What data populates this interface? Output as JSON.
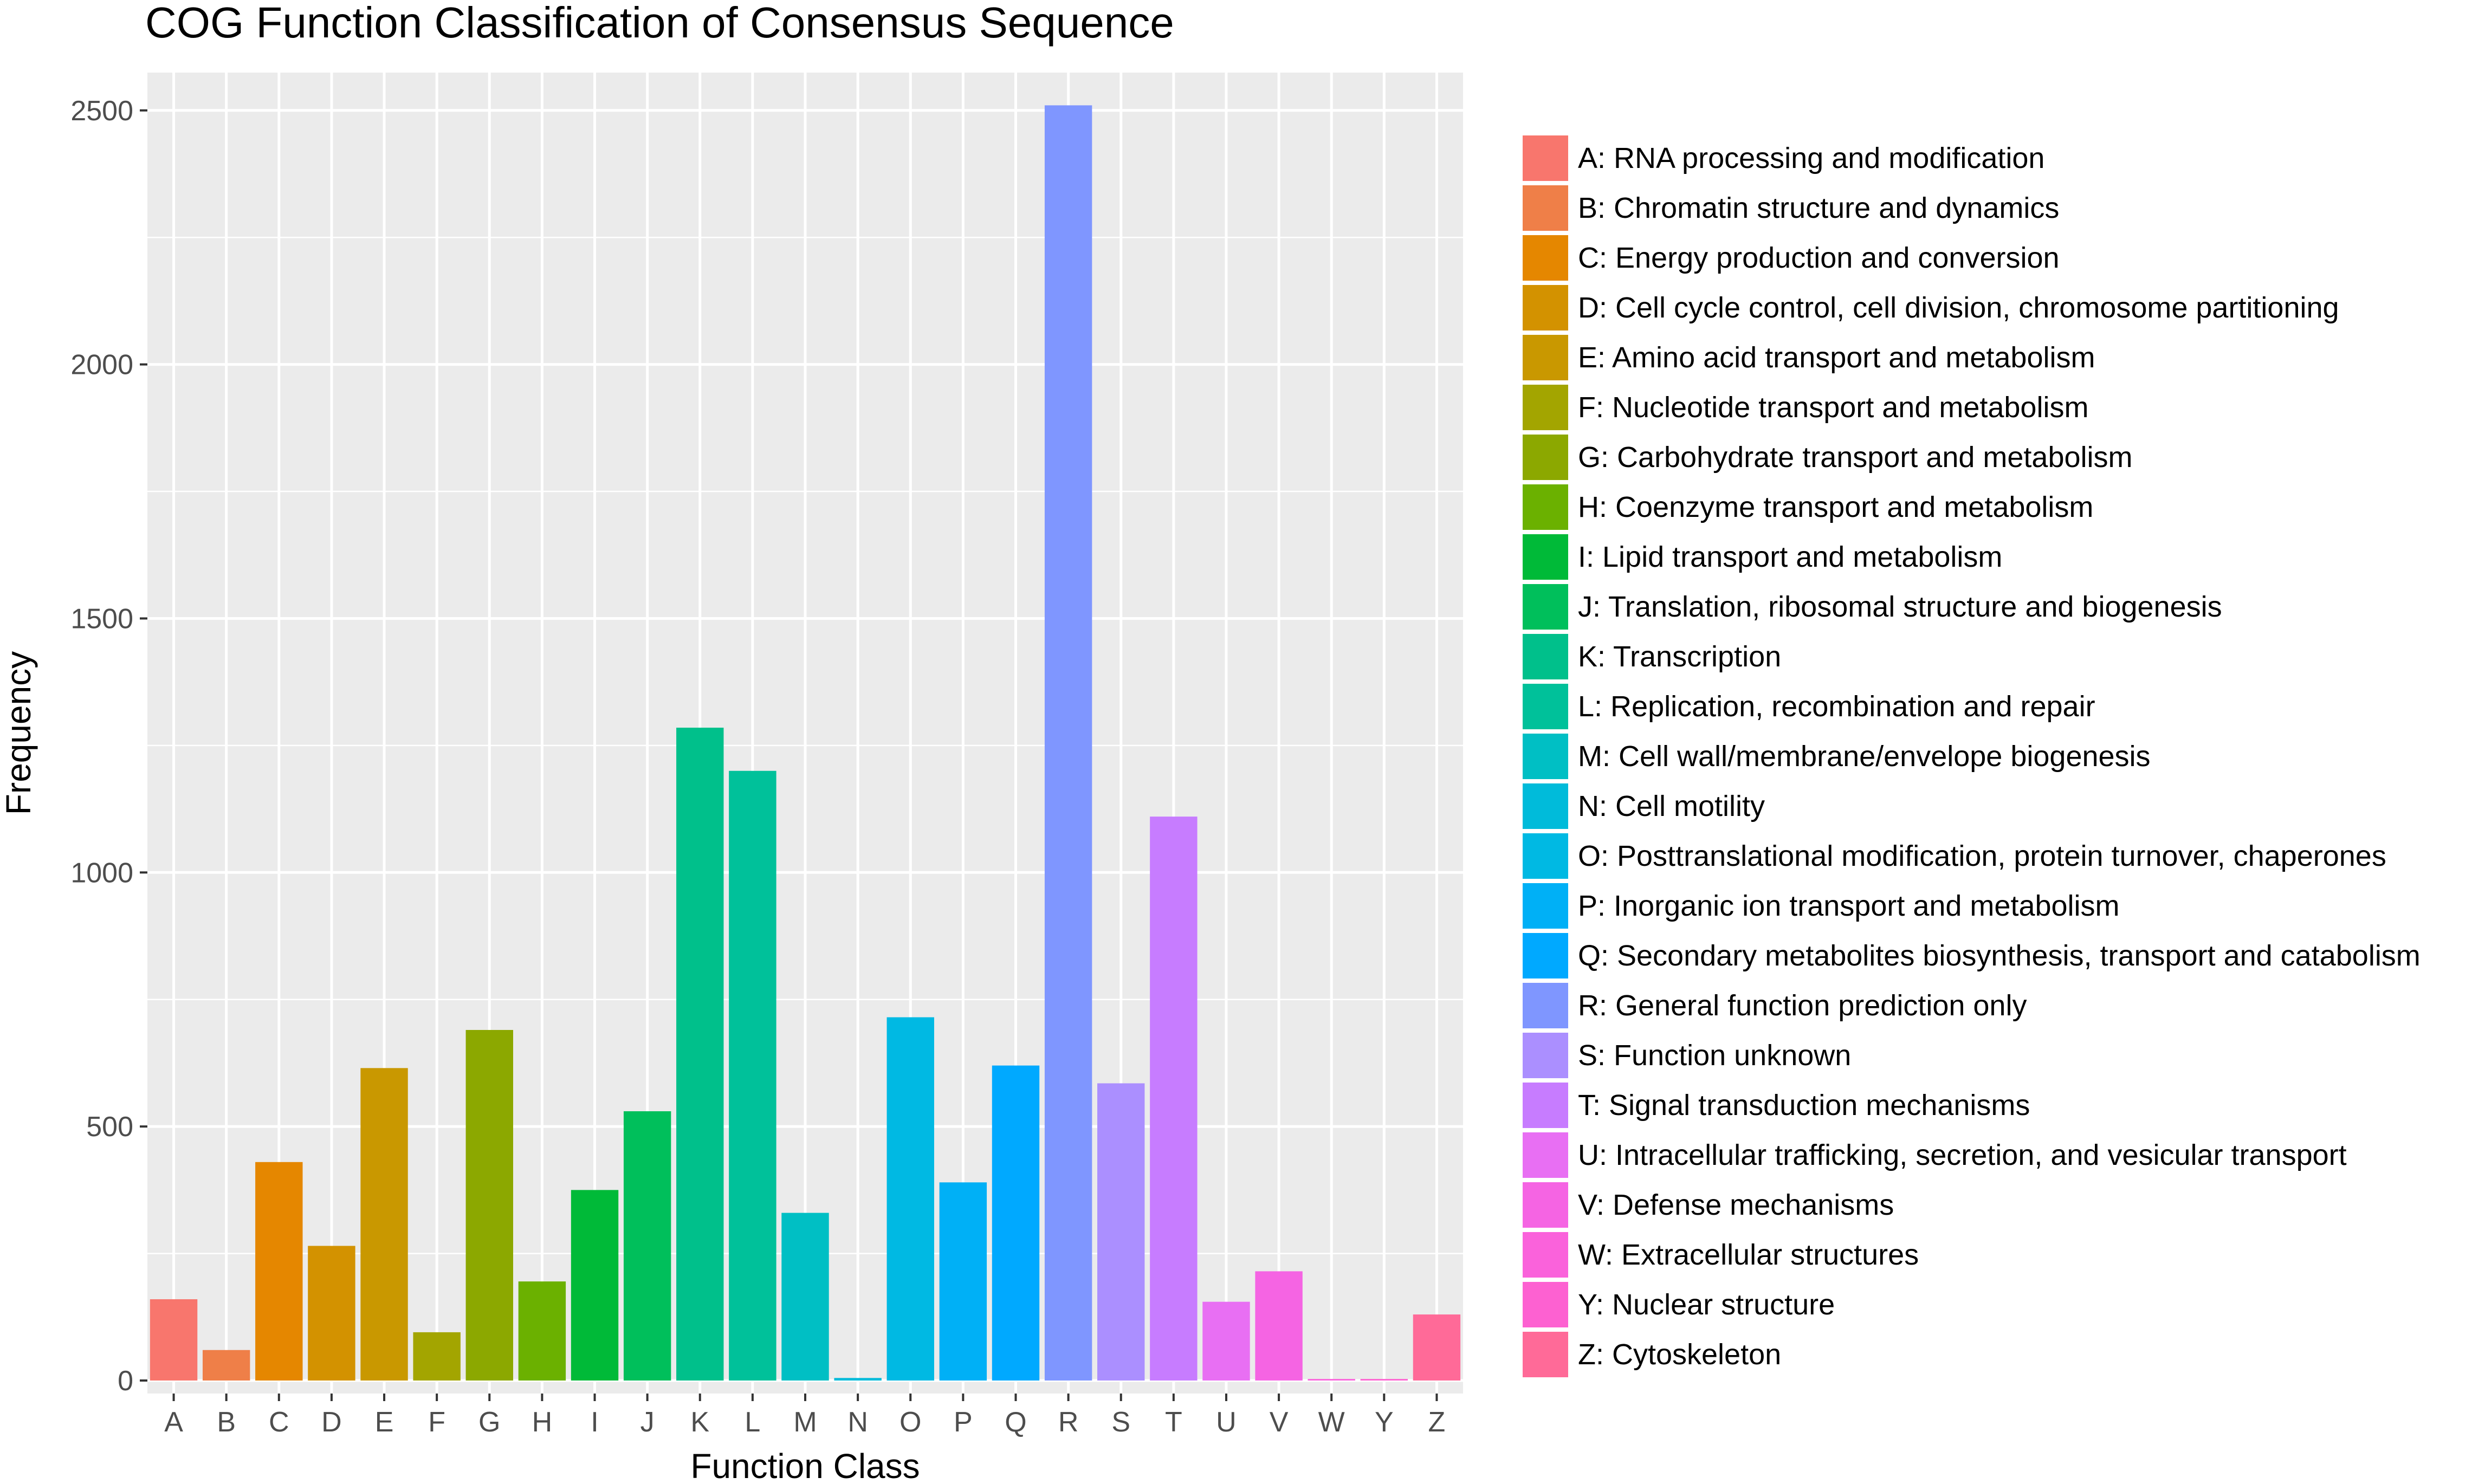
{
  "chart_data": {
    "type": "bar",
    "title": "COG Function Classification of Consensus Sequence",
    "xlabel": "Function Class",
    "ylabel": "Frequency",
    "ylim": [
      0,
      2600
    ],
    "yticks": [
      0,
      500,
      1000,
      1500,
      2000,
      2500
    ],
    "grid": true,
    "legend_position": "right",
    "categories": [
      "A",
      "B",
      "C",
      "D",
      "E",
      "F",
      "G",
      "H",
      "I",
      "J",
      "K",
      "L",
      "M",
      "N",
      "O",
      "P",
      "Q",
      "R",
      "S",
      "T",
      "U",
      "V",
      "W",
      "Y",
      "Z"
    ],
    "values": [
      160,
      60,
      430,
      265,
      615,
      95,
      690,
      195,
      375,
      530,
      1285,
      1200,
      330,
      5,
      715,
      390,
      620,
      2510,
      585,
      1110,
      155,
      215,
      3,
      3,
      130
    ],
    "colors": [
      "#F8766D",
      "#EF7F48",
      "#E58700",
      "#D39200",
      "#C99800",
      "#A3A500",
      "#8CA800",
      "#6BB100",
      "#00BA38",
      "#00BF5B",
      "#00C08B",
      "#00C19A",
      "#00BFC4",
      "#00BBDA",
      "#00B9E3",
      "#00B0F6",
      "#00A9FF",
      "#7F96FF",
      "#AB8FFF",
      "#C77CFF",
      "#E86FF3",
      "#F564E3",
      "#FA62DB",
      "#FD61D1",
      "#FF6A98"
    ],
    "legend": [
      "A: RNA processing and modification",
      "B: Chromatin structure and dynamics",
      "C: Energy production and conversion",
      "D: Cell cycle control, cell division, chromosome partitioning",
      "E: Amino acid transport and metabolism",
      "F: Nucleotide transport and metabolism",
      "G: Carbohydrate transport and metabolism",
      "H: Coenzyme transport and metabolism",
      "I: Lipid transport and metabolism",
      "J: Translation, ribosomal structure and biogenesis",
      "K: Transcription",
      "L: Replication, recombination and repair",
      "M: Cell wall/membrane/envelope biogenesis",
      "N: Cell motility",
      "O: Posttranslational modification, protein turnover, chaperones",
      "P: Inorganic ion transport and metabolism",
      "Q: Secondary metabolites biosynthesis, transport and catabolism",
      "R: General function prediction only",
      "S: Function unknown",
      "T: Signal transduction mechanisms",
      "U: Intracellular trafficking, secretion, and vesicular transport",
      "V: Defense mechanisms",
      "W: Extracellular structures",
      "Y: Nuclear structure",
      "Z: Cytoskeleton"
    ]
  }
}
